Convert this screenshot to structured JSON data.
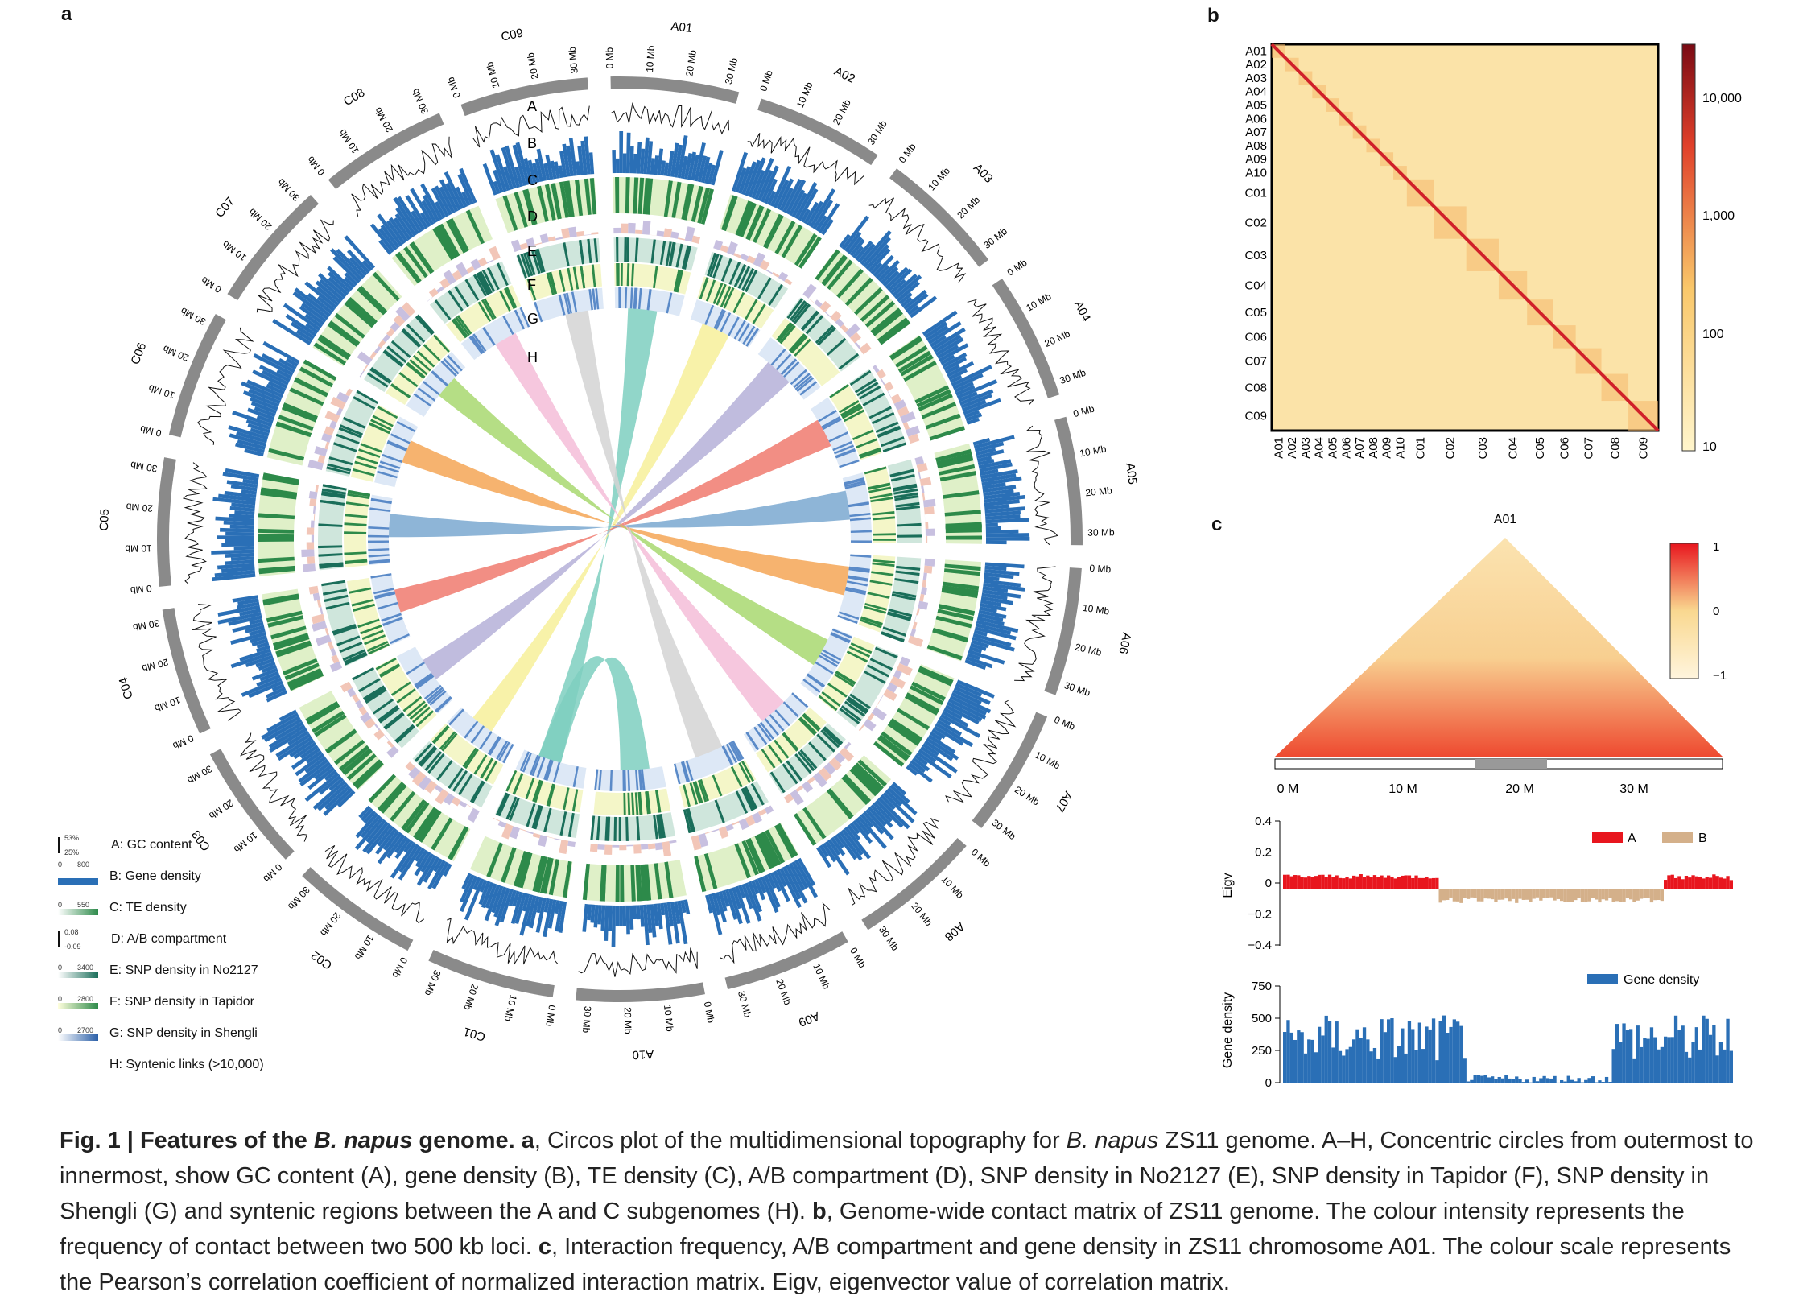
{
  "panels": {
    "a": "a",
    "b": "b",
    "c": "c"
  },
  "circos": {
    "track_letters": [
      "A",
      "B",
      "C",
      "D",
      "E",
      "F",
      "G",
      "H"
    ],
    "chromosomes": [
      "A01",
      "A02",
      "A03",
      "A04",
      "A05",
      "A06",
      "A07",
      "A08",
      "A09",
      "A10",
      "C01",
      "C02",
      "C03",
      "C04",
      "C05",
      "C06",
      "C07",
      "C08",
      "C09"
    ],
    "colors": {
      "gc": "#7a7a7a",
      "gene": "#2a6fb6",
      "te": "#2d8a4a",
      "ab_a": "#f2c6b8",
      "ab_b": "#c8c0e0",
      "snp1": "#1a6e5a",
      "snp2": "#c9d86a",
      "snp3": "#5a8ac8"
    },
    "link_colors": [
      "#7ecfc0",
      "#f7f09a",
      "#b5b0d8",
      "#f07a6e",
      "#7aa8d0",
      "#f5a656",
      "#a8d870",
      "#f5bdd8",
      "#d4d4d4"
    ]
  },
  "legend": [
    {
      "label": "A: GC content",
      "ticks": [
        "53%",
        "25%"
      ],
      "kind": "line"
    },
    {
      "label": "B: Gene density",
      "ticks": [
        "0",
        "800"
      ],
      "kind": "bar",
      "color": "#2a6fb6"
    },
    {
      "label": "C: TE density",
      "ticks": [
        "0",
        "550"
      ],
      "kind": "grad",
      "from": "#ffffff",
      "to": "#2d8a4a"
    },
    {
      "label": "D: A/B compartment",
      "ticks": [
        "0.08",
        "-0.09"
      ],
      "kind": "line"
    },
    {
      "label": "E: SNP density in No2127",
      "ticks": [
        "0",
        "3400"
      ],
      "kind": "grad",
      "from": "#ffffff",
      "to": "#1a6e5a"
    },
    {
      "label": "F: SNP density in Tapidor",
      "ticks": [
        "0",
        "2800"
      ],
      "kind": "grad",
      "from": "#ffffdd",
      "to": "#2d8a4a"
    },
    {
      "label": "G: SNP density in Shengli",
      "ticks": [
        "0",
        "2700"
      ],
      "kind": "grad",
      "from": "#ffffff",
      "to": "#2a5fa8"
    },
    {
      "label": "H: Syntenic links (>10,000)",
      "ticks": [],
      "kind": "none"
    }
  ],
  "hic": {
    "row_labels": [
      "A01",
      "A02",
      "A03",
      "A04",
      "A05",
      "A06",
      "A07",
      "A08",
      "A09",
      "A10",
      "C01",
      "C02",
      "C03",
      "C04",
      "C05",
      "C06",
      "C07",
      "C08",
      "C09"
    ],
    "scale_labels": [
      "10,000",
      "1,000",
      "100",
      "10"
    ]
  },
  "a01": {
    "title": "A01",
    "scale_labels": [
      "1",
      "0",
      "−1"
    ],
    "x_ticks": [
      "0 M",
      "10 M",
      "20 M",
      "30 M"
    ],
    "eig_ylabel": "Eigv",
    "eig_ticks": [
      "0.4",
      "0.2",
      "0",
      "−0.2",
      "−0.4"
    ],
    "legend_a": "A",
    "legend_b": "B",
    "gd_ylabel": "Gene density",
    "gd_ticks": [
      "750",
      "500",
      "250",
      "0"
    ],
    "gd_legend": "Gene density"
  },
  "caption": {
    "fig": "Fig. 1 | Features of the ",
    "species": "B. napus",
    "fig_end": " genome.",
    "a_label": " a",
    "a_text1": ", Circos plot of the multidimensional topography for ",
    "a_species": "B. napus",
    "a_text2": " ZS11 genome. A–H, Concentric circles from outermost to innermost, show GC content (A), gene density (B), TE density (C), A/B compartment (D), SNP density in No2127 (E), SNP density in Tapidor (F), SNP density in Shengli (G) and syntenic regions between the A and C subgenomes (H). ",
    "b_label": "b",
    "b_text": ", Genome-wide contact matrix of ZS11 genome. The colour intensity represents the frequency of contact between two 500 kb loci. ",
    "c_label": "c",
    "c_text": ", Interaction frequency, A/B compartment and gene density in ZS11 chromosome A01. The colour scale represents the Pearson’s correlation coefficient of normalized interaction matrix. Eigv, eigenvector value of correlation matrix."
  }
}
